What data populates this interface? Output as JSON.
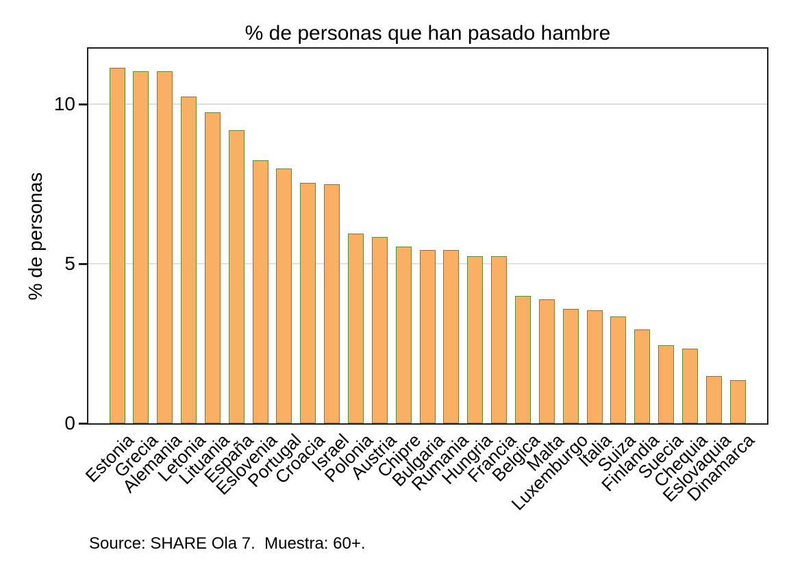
{
  "figure": {
    "source_note": "Source: SHARE Ola 7.  Muestra: 60+."
  },
  "chart_data": {
    "type": "bar",
    "title": "% de personas que han pasado hambre",
    "xlabel": "",
    "ylabel": "% de personas",
    "categories": [
      "Estonia",
      "Grecia",
      "Alemania",
      "Letonia",
      "Lituania",
      "España",
      "Eslovenia",
      "Portugal",
      "Croacia",
      "Israel",
      "Polonia",
      "Austria",
      "Chipre",
      "Bulgaria",
      "Rumania",
      "Hungria",
      "Francia",
      "Belgica",
      "Malta",
      "Luxemburgo",
      "Italia",
      "Suiza",
      "Finlandia",
      "Suecia",
      "Chequia",
      "Eslovaquia",
      "Dinamarca"
    ],
    "values": [
      11.1,
      11.0,
      11.0,
      10.2,
      9.7,
      9.15,
      8.2,
      7.95,
      7.5,
      7.45,
      5.9,
      5.8,
      5.5,
      5.4,
      5.4,
      5.2,
      5.2,
      3.95,
      3.85,
      3.55,
      3.5,
      3.3,
      2.9,
      2.4,
      2.3,
      1.45,
      1.3
    ],
    "ylim": [
      0,
      11.75
    ],
    "yticks": [
      0,
      5,
      10
    ],
    "grid": "horizontal",
    "legend": "none",
    "colors": {
      "bar_fill": "#FAB064",
      "bar_border": "#5E8C33",
      "gridline": "#E0E0E0",
      "frame": "#1E1E1E",
      "text": "#000000",
      "background": "#FFFFFF"
    }
  }
}
